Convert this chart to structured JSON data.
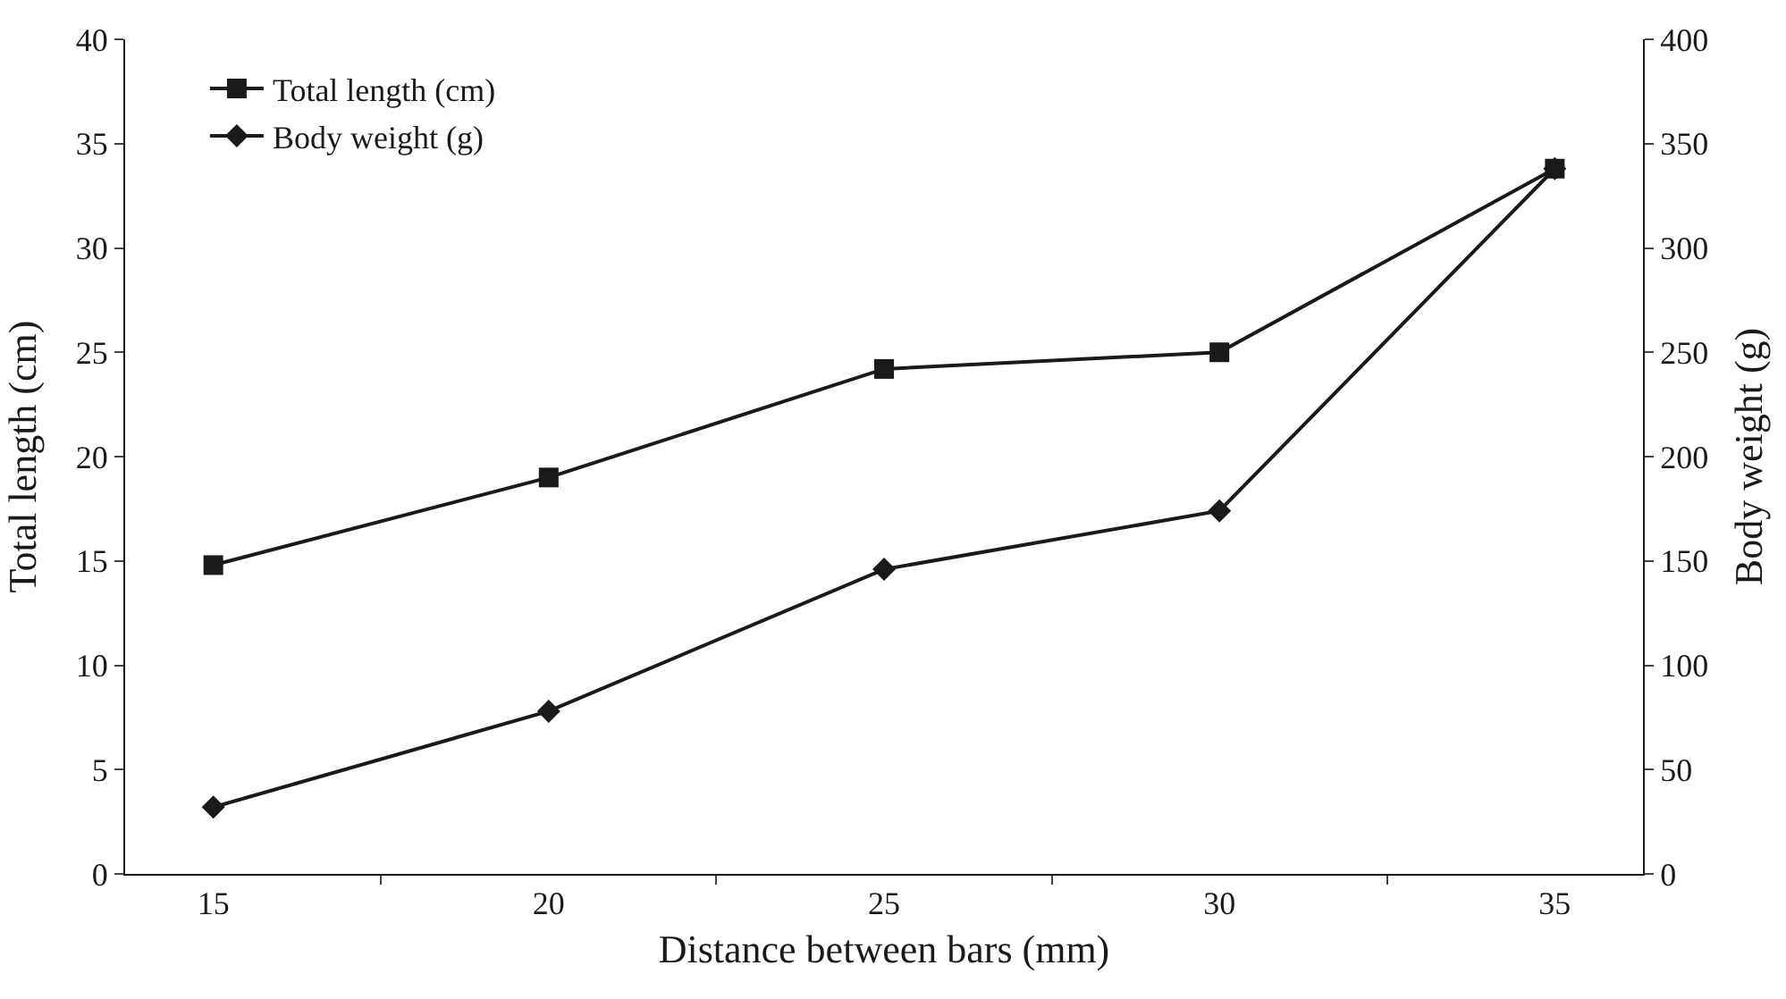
{
  "chart_data": {
    "type": "line",
    "xlabel": "Distance between bars (mm)",
    "ylabel": "Total length (cm)",
    "y2label": "Body weight (g)",
    "categories": [
      "15",
      "20",
      "25",
      "30",
      "35"
    ],
    "series": [
      {
        "name": "Total length (cm)",
        "color": "#1a1a1a",
        "marker": "square",
        "values": [
          14.8,
          19,
          24.2,
          25,
          33.8
        ]
      },
      {
        "name": "Body weight (g)",
        "color": "#1a1a1a",
        "marker": "diamond",
        "axis": "y2",
        "values": [
          32,
          78,
          146,
          174,
          338
        ]
      }
    ],
    "ylim": [
      0,
      40
    ],
    "yticks": [
      0,
      5,
      10,
      15,
      20,
      25,
      30,
      35,
      40
    ],
    "y2lim": [
      0,
      400
    ],
    "y2ticks": [
      0,
      50,
      100,
      150,
      200,
      250,
      300,
      350,
      400
    ],
    "legend": "top left",
    "line_style": "solid"
  }
}
